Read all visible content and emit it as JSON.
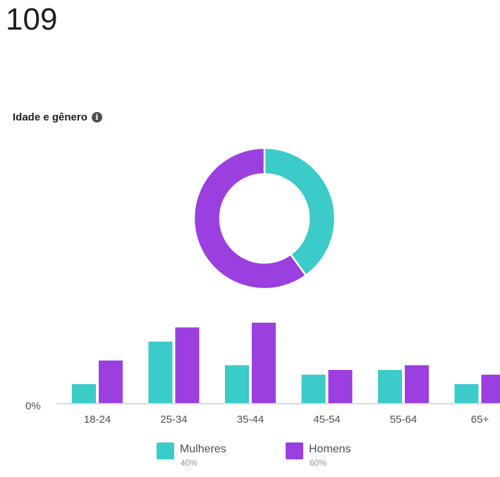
{
  "total": "109",
  "section": {
    "title": "Idade e gênero",
    "info_icon": "info-circle-icon"
  },
  "colors": {
    "women": "#3bcbc9",
    "men": "#9b3fe0",
    "axis": "#d9dbe0"
  },
  "chart_data": [
    {
      "type": "pie",
      "title": "",
      "labels": [
        "Mulheres",
        "Homens"
      ],
      "values": [
        40,
        60
      ]
    },
    {
      "type": "bar",
      "title": "",
      "categories": [
        "18-24",
        "25-34",
        "35-44",
        "45-54",
        "55-64",
        "65+"
      ],
      "series": [
        {
          "name": "Mulheres",
          "values": [
            4,
            13,
            8,
            6,
            7,
            4
          ]
        },
        {
          "name": "Homens",
          "values": [
            9,
            16,
            17,
            7,
            8,
            6
          ]
        }
      ],
      "y_tick_label": "0%",
      "ylim": [
        0,
        17
      ],
      "grid": false,
      "legend_position": "bottom"
    }
  ],
  "legend": [
    {
      "name": "Mulheres",
      "pct": "40%"
    },
    {
      "name": "Homens",
      "pct": "60%"
    }
  ]
}
